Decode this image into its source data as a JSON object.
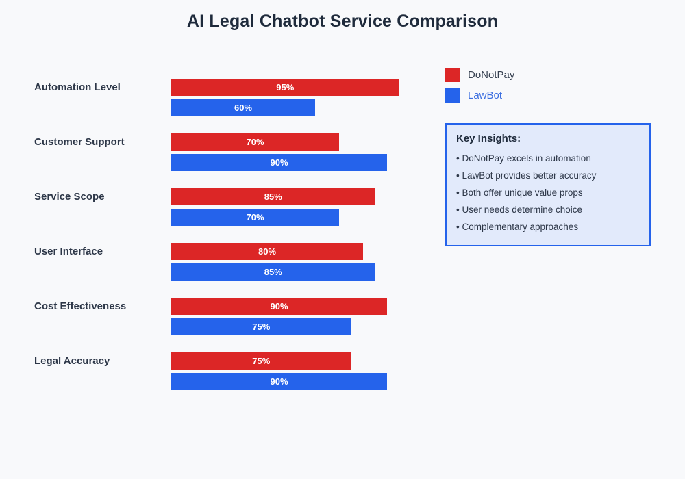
{
  "page": {
    "title": "AI Legal Chatbot Service Comparison",
    "background_color": "#F8F9FB",
    "title_color": "#1E2A3B"
  },
  "chart_data": {
    "type": "bar",
    "orientation": "horizontal",
    "unit": "%",
    "title": "AI Legal Chatbot Service Comparison",
    "categories": [
      "Automation Level",
      "Customer Support",
      "Service Scope",
      "User Interface",
      "Cost Effectiveness",
      "Legal Accuracy"
    ],
    "series": [
      {
        "name": "DoNotPay",
        "color": "#DC2626",
        "label_color": "#374151",
        "values": [
          95,
          70,
          85,
          80,
          90,
          75
        ]
      },
      {
        "name": "LawBot",
        "color": "#2563EB",
        "label_color": "#3B6EE0",
        "values": [
          60,
          90,
          70,
          85,
          75,
          90
        ]
      }
    ],
    "xlim": [
      0,
      100
    ],
    "grid": false,
    "value_labels": "inside-center",
    "legend_position": "top-right"
  },
  "insights": {
    "title": "Key Insights:",
    "items": [
      "DoNotPay excels in automation",
      "LawBot provides better accuracy",
      "Both offer unique value props",
      "User needs determine choice",
      "Complementary approaches"
    ],
    "background_color": "#E2EAFB",
    "border_color": "#2563EB"
  }
}
